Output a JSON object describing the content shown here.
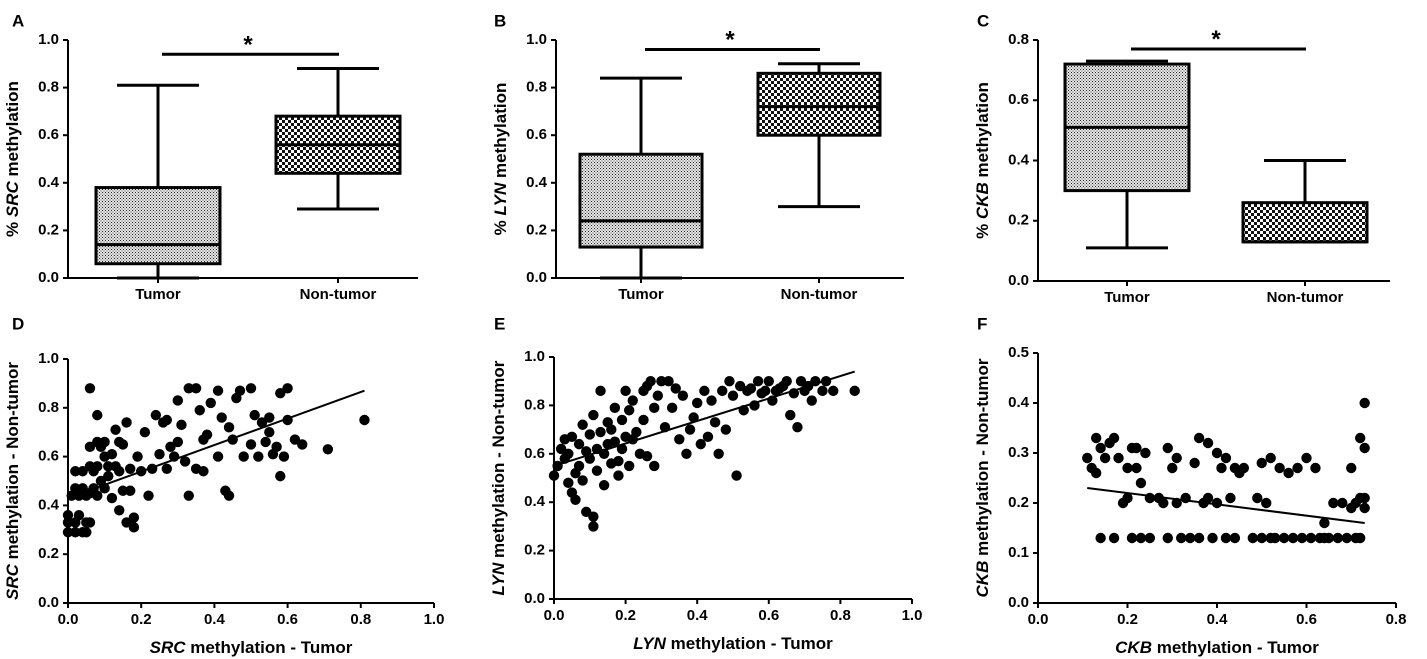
{
  "chart_data": [
    {
      "panel": "A",
      "type": "box",
      "ylabel_italic": "SRC",
      "ylabel_rest": " methylation",
      "ylabel_prefix": "% ",
      "categories": [
        "Tumor",
        "Non-tumor"
      ],
      "ylim": [
        0,
        1.0
      ],
      "yticks": [
        "0.0",
        "0.2",
        "0.4",
        "0.6",
        "0.8",
        "1.0"
      ],
      "boxes": [
        {
          "category": "Tumor",
          "min": 0.0,
          "q1": 0.06,
          "median": 0.14,
          "q3": 0.38,
          "max": 0.81,
          "pattern": "fine"
        },
        {
          "category": "Non-tumor",
          "min": 0.29,
          "q1": 0.44,
          "median": 0.56,
          "q3": 0.68,
          "max": 0.88,
          "pattern": "check"
        }
      ],
      "significance": {
        "label": "*",
        "y": 0.94
      }
    },
    {
      "panel": "B",
      "type": "box",
      "ylabel_italic": "LYN",
      "ylabel_rest": " methylation",
      "ylabel_prefix": "% ",
      "categories": [
        "Tumor",
        "Non-tumor"
      ],
      "ylim": [
        0,
        1.0
      ],
      "yticks": [
        "0.0",
        "0.2",
        "0.4",
        "0.6",
        "0.8",
        "1.0"
      ],
      "boxes": [
        {
          "category": "Tumor",
          "min": 0.0,
          "q1": 0.13,
          "median": 0.24,
          "q3": 0.52,
          "max": 0.84,
          "pattern": "fine"
        },
        {
          "category": "Non-tumor",
          "min": 0.3,
          "q1": 0.6,
          "median": 0.72,
          "q3": 0.86,
          "max": 0.9,
          "pattern": "check"
        }
      ],
      "significance": {
        "label": "*",
        "y": 0.96
      }
    },
    {
      "panel": "C",
      "type": "box",
      "ylabel_italic": "CKB",
      "ylabel_rest": " methylation",
      "ylabel_prefix": "% ",
      "categories": [
        "Tumor",
        "Non-tumor"
      ],
      "ylim": [
        0,
        0.8
      ],
      "yticks": [
        "0.0",
        "0.2",
        "0.4",
        "0.6",
        "0.8"
      ],
      "boxes": [
        {
          "category": "Tumor",
          "min": 0.11,
          "q1": 0.3,
          "median": 0.51,
          "q3": 0.72,
          "max": 0.73,
          "pattern": "fine"
        },
        {
          "category": "Non-tumor",
          "min": 0.13,
          "q1": 0.13,
          "median": 0.13,
          "q3": 0.26,
          "max": 0.4,
          "pattern": "check"
        }
      ],
      "significance": {
        "label": "*",
        "y": 0.77
      }
    },
    {
      "panel": "D",
      "type": "scatter",
      "xlabel_italic": "SRC",
      "xlabel_rest": " methylation - Tumor",
      "ylabel_italic": "SRC",
      "ylabel_rest": " methylation - Non-tumor",
      "xlim": [
        0,
        1.0
      ],
      "ylim": [
        0,
        1.0
      ],
      "xticks": [
        "0.0",
        "0.2",
        "0.4",
        "0.6",
        "0.8",
        "1.0"
      ],
      "yticks": [
        "0.0",
        "0.2",
        "0.4",
        "0.6",
        "0.8",
        "1.0"
      ],
      "fit": [
        [
          0.0,
          0.43
        ],
        [
          0.81,
          0.87
        ]
      ],
      "points": [
        [
          0,
          0.29
        ],
        [
          0,
          0.33
        ],
        [
          0,
          0.36
        ],
        [
          0.02,
          0.29
        ],
        [
          0.02,
          0.33
        ],
        [
          0.03,
          0.36
        ],
        [
          0.04,
          0.29
        ],
        [
          0.05,
          0.33
        ],
        [
          0.05,
          0.29
        ],
        [
          0.06,
          0.33
        ],
        [
          0.01,
          0.44
        ],
        [
          0.02,
          0.47
        ],
        [
          0.03,
          0.44
        ],
        [
          0.04,
          0.47
        ],
        [
          0.05,
          0.44
        ],
        [
          0.06,
          0.45
        ],
        [
          0.07,
          0.47
        ],
        [
          0.08,
          0.44
        ],
        [
          0.09,
          0.5
        ],
        [
          0.02,
          0.54
        ],
        [
          0.04,
          0.54
        ],
        [
          0.06,
          0.56
        ],
        [
          0.07,
          0.54
        ],
        [
          0.08,
          0.56
        ],
        [
          0.06,
          0.64
        ],
        [
          0.08,
          0.66
        ],
        [
          0.09,
          0.64
        ],
        [
          0.06,
          0.88
        ],
        [
          0.08,
          0.77
        ],
        [
          0.1,
          0.6
        ],
        [
          0.1,
          0.66
        ],
        [
          0.11,
          0.56
        ],
        [
          0.1,
          0.47
        ],
        [
          0.11,
          0.52
        ],
        [
          0.12,
          0.43
        ],
        [
          0.12,
          0.61
        ],
        [
          0.13,
          0.56
        ],
        [
          0.13,
          0.71
        ],
        [
          0.14,
          0.54
        ],
        [
          0.14,
          0.66
        ],
        [
          0.14,
          0.38
        ],
        [
          0.15,
          0.46
        ],
        [
          0.15,
          0.65
        ],
        [
          0.16,
          0.33
        ],
        [
          0.16,
          0.74
        ],
        [
          0.17,
          0.46
        ],
        [
          0.17,
          0.55
        ],
        [
          0.18,
          0.35
        ],
        [
          0.18,
          0.31
        ],
        [
          0.19,
          0.6
        ],
        [
          0.2,
          0.54
        ],
        [
          0.21,
          0.7
        ],
        [
          0.22,
          0.44
        ],
        [
          0.23,
          0.55
        ],
        [
          0.24,
          0.77
        ],
        [
          0.25,
          0.61
        ],
        [
          0.26,
          0.74
        ],
        [
          0.27,
          0.55
        ],
        [
          0.27,
          0.75
        ],
        [
          0.28,
          0.64
        ],
        [
          0.29,
          0.6
        ],
        [
          0.3,
          0.83
        ],
        [
          0.3,
          0.66
        ],
        [
          0.31,
          0.73
        ],
        [
          0.32,
          0.58
        ],
        [
          0.33,
          0.44
        ],
        [
          0.33,
          0.88
        ],
        [
          0.35,
          0.88
        ],
        [
          0.35,
          0.55
        ],
        [
          0.36,
          0.79
        ],
        [
          0.37,
          0.67
        ],
        [
          0.37,
          0.54
        ],
        [
          0.38,
          0.69
        ],
        [
          0.39,
          0.82
        ],
        [
          0.41,
          0.87
        ],
        [
          0.41,
          0.6
        ],
        [
          0.42,
          0.76
        ],
        [
          0.43,
          0.46
        ],
        [
          0.44,
          0.44
        ],
        [
          0.44,
          0.72
        ],
        [
          0.45,
          0.67
        ],
        [
          0.46,
          0.84
        ],
        [
          0.47,
          0.87
        ],
        [
          0.48,
          0.6
        ],
        [
          0.5,
          0.88
        ],
        [
          0.5,
          0.65
        ],
        [
          0.51,
          0.77
        ],
        [
          0.52,
          0.6
        ],
        [
          0.53,
          0.74
        ],
        [
          0.54,
          0.66
        ],
        [
          0.55,
          0.7
        ],
        [
          0.55,
          0.76
        ],
        [
          0.56,
          0.61
        ],
        [
          0.57,
          0.64
        ],
        [
          0.58,
          0.86
        ],
        [
          0.58,
          0.52
        ],
        [
          0.59,
          0.6
        ],
        [
          0.6,
          0.75
        ],
        [
          0.6,
          0.88
        ],
        [
          0.62,
          0.67
        ],
        [
          0.64,
          0.65
        ],
        [
          0.71,
          0.63
        ],
        [
          0.81,
          0.75
        ]
      ]
    },
    {
      "panel": "E",
      "type": "scatter",
      "xlabel_italic": "LYN",
      "xlabel_rest": " methylation - Tumor",
      "ylabel_italic": "LYN",
      "ylabel_rest": " methylation - Non-tumor",
      "xlim": [
        0,
        1.0
      ],
      "ylim": [
        0,
        1.0
      ],
      "xticks": [
        "0.0",
        "0.2",
        "0.4",
        "0.6",
        "0.8",
        "1.0"
      ],
      "yticks": [
        "0.0",
        "0.2",
        "0.4",
        "0.6",
        "0.8",
        "1.0"
      ],
      "fit": [
        [
          0.0,
          0.55
        ],
        [
          0.84,
          0.94
        ]
      ],
      "points": [
        [
          0,
          0.51
        ],
        [
          0.01,
          0.55
        ],
        [
          0.02,
          0.62
        ],
        [
          0.03,
          0.58
        ],
        [
          0.03,
          0.66
        ],
        [
          0.04,
          0.48
        ],
        [
          0.04,
          0.6
        ],
        [
          0.05,
          0.44
        ],
        [
          0.05,
          0.67
        ],
        [
          0.06,
          0.52
        ],
        [
          0.06,
          0.41
        ],
        [
          0.07,
          0.55
        ],
        [
          0.07,
          0.64
        ],
        [
          0.08,
          0.72
        ],
        [
          0.08,
          0.49
        ],
        [
          0.09,
          0.61
        ],
        [
          0.09,
          0.36
        ],
        [
          0.1,
          0.58
        ],
        [
          0.1,
          0.68
        ],
        [
          0.11,
          0.34
        ],
        [
          0.11,
          0.3
        ],
        [
          0.11,
          0.76
        ],
        [
          0.12,
          0.62
        ],
        [
          0.12,
          0.53
        ],
        [
          0.13,
          0.86
        ],
        [
          0.13,
          0.69
        ],
        [
          0.14,
          0.6
        ],
        [
          0.14,
          0.47
        ],
        [
          0.15,
          0.64
        ],
        [
          0.15,
          0.73
        ],
        [
          0.16,
          0.56
        ],
        [
          0.16,
          0.7
        ],
        [
          0.17,
          0.79
        ],
        [
          0.17,
          0.65
        ],
        [
          0.18,
          0.51
        ],
        [
          0.18,
          0.57
        ],
        [
          0.19,
          0.74
        ],
        [
          0.19,
          0.62
        ],
        [
          0.2,
          0.86
        ],
        [
          0.2,
          0.67
        ],
        [
          0.21,
          0.55
        ],
        [
          0.21,
          0.78
        ],
        [
          0.22,
          0.82
        ],
        [
          0.22,
          0.66
        ],
        [
          0.23,
          0.69
        ],
        [
          0.24,
          0.6
        ],
        [
          0.25,
          0.86
        ],
        [
          0.25,
          0.74
        ],
        [
          0.26,
          0.88
        ],
        [
          0.26,
          0.59
        ],
        [
          0.27,
          0.9
        ],
        [
          0.28,
          0.55
        ],
        [
          0.28,
          0.79
        ],
        [
          0.29,
          0.84
        ],
        [
          0.3,
          0.9
        ],
        [
          0.31,
          0.71
        ],
        [
          0.32,
          0.9
        ],
        [
          0.33,
          0.79
        ],
        [
          0.34,
          0.87
        ],
        [
          0.35,
          0.66
        ],
        [
          0.36,
          0.84
        ],
        [
          0.37,
          0.6
        ],
        [
          0.38,
          0.7
        ],
        [
          0.39,
          0.75
        ],
        [
          0.4,
          0.81
        ],
        [
          0.41,
          0.64
        ],
        [
          0.42,
          0.86
        ],
        [
          0.43,
          0.67
        ],
        [
          0.44,
          0.82
        ],
        [
          0.45,
          0.73
        ],
        [
          0.46,
          0.6
        ],
        [
          0.47,
          0.86
        ],
        [
          0.48,
          0.7
        ],
        [
          0.49,
          0.9
        ],
        [
          0.5,
          0.84
        ],
        [
          0.51,
          0.51
        ],
        [
          0.52,
          0.88
        ],
        [
          0.53,
          0.78
        ],
        [
          0.54,
          0.86
        ],
        [
          0.55,
          0.87
        ],
        [
          0.56,
          0.8
        ],
        [
          0.57,
          0.9
        ],
        [
          0.58,
          0.85
        ],
        [
          0.59,
          0.86
        ],
        [
          0.6,
          0.9
        ],
        [
          0.61,
          0.82
        ],
        [
          0.62,
          0.86
        ],
        [
          0.63,
          0.87
        ],
        [
          0.64,
          0.88
        ],
        [
          0.65,
          0.9
        ],
        [
          0.66,
          0.76
        ],
        [
          0.67,
          0.85
        ],
        [
          0.68,
          0.71
        ],
        [
          0.69,
          0.9
        ],
        [
          0.7,
          0.86
        ],
        [
          0.71,
          0.88
        ],
        [
          0.72,
          0.82
        ],
        [
          0.73,
          0.9
        ],
        [
          0.75,
          0.86
        ],
        [
          0.76,
          0.9
        ],
        [
          0.78,
          0.86
        ],
        [
          0.84,
          0.86
        ]
      ]
    },
    {
      "panel": "F",
      "type": "scatter",
      "xlabel_italic": "CKB",
      "xlabel_rest": " methylation - Tumor",
      "ylabel_italic": "CKB",
      "ylabel_rest": " methylation - Non-tumor",
      "xlim": [
        0,
        0.8
      ],
      "ylim": [
        0,
        0.5
      ],
      "xticks": [
        "0.0",
        "0.2",
        "0.4",
        "0.6",
        "0.8"
      ],
      "yticks": [
        "0.0",
        "0.1",
        "0.2",
        "0.3",
        "0.4",
        "0.5"
      ],
      "fit": [
        [
          0.11,
          0.23
        ],
        [
          0.73,
          0.16
        ]
      ],
      "points": [
        [
          0.11,
          0.29
        ],
        [
          0.12,
          0.27
        ],
        [
          0.13,
          0.33
        ],
        [
          0.13,
          0.26
        ],
        [
          0.14,
          0.31
        ],
        [
          0.14,
          0.13
        ],
        [
          0.15,
          0.29
        ],
        [
          0.16,
          0.32
        ],
        [
          0.17,
          0.13
        ],
        [
          0.17,
          0.33
        ],
        [
          0.18,
          0.29
        ],
        [
          0.19,
          0.2
        ],
        [
          0.2,
          0.21
        ],
        [
          0.2,
          0.27
        ],
        [
          0.21,
          0.31
        ],
        [
          0.21,
          0.13
        ],
        [
          0.22,
          0.31
        ],
        [
          0.22,
          0.27
        ],
        [
          0.23,
          0.13
        ],
        [
          0.23,
          0.24
        ],
        [
          0.24,
          0.3
        ],
        [
          0.25,
          0.21
        ],
        [
          0.25,
          0.13
        ],
        [
          0.27,
          0.21
        ],
        [
          0.28,
          0.2
        ],
        [
          0.29,
          0.31
        ],
        [
          0.29,
          0.13
        ],
        [
          0.3,
          0.27
        ],
        [
          0.31,
          0.29
        ],
        [
          0.31,
          0.2
        ],
        [
          0.32,
          0.13
        ],
        [
          0.33,
          0.21
        ],
        [
          0.34,
          0.13
        ],
        [
          0.35,
          0.28
        ],
        [
          0.36,
          0.13
        ],
        [
          0.36,
          0.33
        ],
        [
          0.37,
          0.2
        ],
        [
          0.38,
          0.32
        ],
        [
          0.38,
          0.21
        ],
        [
          0.39,
          0.13
        ],
        [
          0.4,
          0.3
        ],
        [
          0.4,
          0.2
        ],
        [
          0.41,
          0.27
        ],
        [
          0.42,
          0.13
        ],
        [
          0.42,
          0.29
        ],
        [
          0.43,
          0.21
        ],
        [
          0.44,
          0.27
        ],
        [
          0.44,
          0.13
        ],
        [
          0.45,
          0.26
        ],
        [
          0.46,
          0.27
        ],
        [
          0.48,
          0.13
        ],
        [
          0.49,
          0.21
        ],
        [
          0.5,
          0.28
        ],
        [
          0.5,
          0.13
        ],
        [
          0.51,
          0.2
        ],
        [
          0.52,
          0.29
        ],
        [
          0.52,
          0.13
        ],
        [
          0.53,
          0.13
        ],
        [
          0.54,
          0.27
        ],
        [
          0.55,
          0.13
        ],
        [
          0.56,
          0.26
        ],
        [
          0.57,
          0.13
        ],
        [
          0.58,
          0.27
        ],
        [
          0.59,
          0.13
        ],
        [
          0.6,
          0.29
        ],
        [
          0.61,
          0.13
        ],
        [
          0.62,
          0.27
        ],
        [
          0.63,
          0.13
        ],
        [
          0.64,
          0.16
        ],
        [
          0.64,
          0.13
        ],
        [
          0.65,
          0.13
        ],
        [
          0.66,
          0.2
        ],
        [
          0.67,
          0.13
        ],
        [
          0.68,
          0.2
        ],
        [
          0.69,
          0.13
        ],
        [
          0.7,
          0.19
        ],
        [
          0.7,
          0.27
        ],
        [
          0.71,
          0.13
        ],
        [
          0.71,
          0.2
        ],
        [
          0.72,
          0.33
        ],
        [
          0.72,
          0.21
        ],
        [
          0.72,
          0.13
        ],
        [
          0.73,
          0.31
        ],
        [
          0.73,
          0.4
        ],
        [
          0.73,
          0.19
        ],
        [
          0.73,
          0.21
        ]
      ]
    }
  ]
}
